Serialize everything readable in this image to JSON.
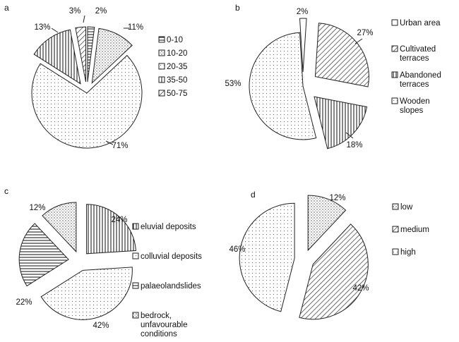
{
  "chart_data": [
    {
      "type": "pie",
      "panel": "a",
      "unit": "%",
      "slices": [
        {
          "label": "0-10",
          "value": 2,
          "pattern": "hstripes"
        },
        {
          "label": "10-20",
          "value": 11,
          "pattern": "grid"
        },
        {
          "label": "20-35",
          "value": 71,
          "pattern": "dots"
        },
        {
          "label": "35-50",
          "value": 13,
          "pattern": "vstripes"
        },
        {
          "label": "50-75",
          "value": 3,
          "pattern": "diag"
        }
      ],
      "data_labels": [
        "2%",
        "11%",
        "71%",
        "13%",
        "3%"
      ],
      "legend": [
        "0-10",
        "10-20",
        "20-35",
        "35-50",
        "50-75"
      ],
      "legend_placement": "right",
      "exploded": true
    },
    {
      "type": "pie",
      "panel": "b",
      "unit": "%",
      "slices": [
        {
          "label": "Urban area",
          "value": 2,
          "pattern": "plain"
        },
        {
          "label": "Cultivated terraces",
          "value": 27,
          "pattern": "diag"
        },
        {
          "label": "Abandoned terraces",
          "value": 18,
          "pattern": "vstripes"
        },
        {
          "label": "Wooden slopes",
          "value": 53,
          "pattern": "dots"
        }
      ],
      "data_labels": [
        "2%",
        "27%",
        "18%",
        "53%"
      ],
      "legend": [
        [
          "Urban area"
        ],
        [
          "Cultivated",
          "terraces"
        ],
        [
          "Abandoned",
          "terraces"
        ],
        [
          "Wooden",
          "slopes"
        ]
      ],
      "legend_placement": "right",
      "exploded": true
    },
    {
      "type": "pie",
      "panel": "c",
      "unit": "%",
      "slices": [
        {
          "label": "eluvial deposits",
          "value": 24,
          "pattern": "vstripes"
        },
        {
          "label": "colluvial deposits",
          "value": 42,
          "pattern": "dots"
        },
        {
          "label": "palaeolandslides",
          "value": 22,
          "pattern": "hstripes"
        },
        {
          "label": "bedrock, unfavourable conditions",
          "value": 12,
          "pattern": "grid"
        }
      ],
      "data_labels": [
        "24%",
        "42%",
        "22%",
        "12%"
      ],
      "legend": [
        [
          "eluvial deposits"
        ],
        [
          "colluvial deposits"
        ],
        [
          "palaeolandslides"
        ],
        [
          "bedrock,",
          "unfavourable",
          "conditions"
        ]
      ],
      "legend_placement": "right",
      "exploded": true
    },
    {
      "type": "pie",
      "panel": "d",
      "unit": "%",
      "slices": [
        {
          "label": "low",
          "value": 12,
          "pattern": "grid"
        },
        {
          "label": "medium",
          "value": 42,
          "pattern": "diag"
        },
        {
          "label": "high",
          "value": 46,
          "pattern": "dots"
        }
      ],
      "data_labels": [
        "12%",
        "42%",
        "46%"
      ],
      "legend": [
        [
          "low"
        ],
        [
          "medium"
        ],
        [
          "high"
        ]
      ],
      "legend_placement": "right",
      "exploded": true
    }
  ]
}
